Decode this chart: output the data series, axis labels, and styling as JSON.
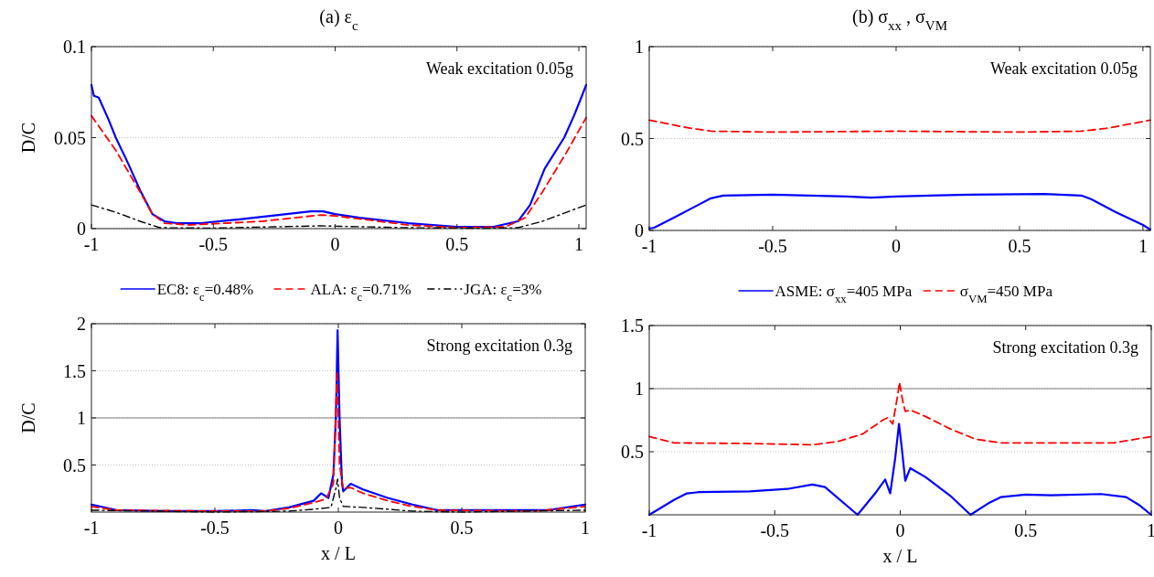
{
  "chart_data": [
    {
      "type": "line",
      "title": "(a) ε$_{c}$",
      "ylabel": "D/C",
      "xlim": [
        -1,
        1.03
      ],
      "ylim": [
        0,
        0.1
      ],
      "xticks": [
        -1,
        -0.5,
        0,
        0.5,
        1
      ],
      "yticks": [
        0,
        0.05,
        0.1
      ],
      "grid": "y",
      "legend": "bottom",
      "annotations": [
        "Weak excitation 0.05g"
      ],
      "series": [
        {
          "name": "EC8: ε$_{c}$=0.48%",
          "color": "#0000ff",
          "line_style": "solid",
          "x": [
            -1,
            -0.99,
            -0.97,
            -0.93,
            -0.9,
            -0.85,
            -0.8,
            -0.75,
            -0.7,
            -0.65,
            -0.55,
            -0.4,
            -0.2,
            -0.1,
            -0.05,
            0,
            0.1,
            0.3,
            0.5,
            0.65,
            0.75,
            0.8,
            0.86,
            0.94,
            0.98,
            1.01,
            1.03
          ],
          "values": [
            0.079,
            0.073,
            0.072,
            0.06,
            0.05,
            0.036,
            0.021,
            0.008,
            0.004,
            0.003,
            0.003,
            0.005,
            0.008,
            0.0095,
            0.0095,
            0.008,
            0.006,
            0.003,
            0.001,
            0.001,
            0.004,
            0.013,
            0.033,
            0.05,
            0.062,
            0.072,
            0.079
          ]
        },
        {
          "name": "ALA: ε$_{c}$=0.71%",
          "color": "#ff0000",
          "line_style": "dashed",
          "x": [
            -1,
            -0.9,
            -0.8,
            -0.75,
            -0.7,
            -0.6,
            -0.3,
            -0.06,
            0,
            0.3,
            0.5,
            0.7,
            0.78,
            0.85,
            0.95,
            1.03
          ],
          "values": [
            0.062,
            0.043,
            0.02,
            0.008,
            0.003,
            0.002,
            0.004,
            0.0075,
            0.007,
            0.002,
            0.0005,
            0.001,
            0.006,
            0.02,
            0.042,
            0.061
          ]
        },
        {
          "name": "JGA: ε$_{c}$=3%",
          "color": "#000000",
          "line_style": "dashdot",
          "x": [
            -1,
            -0.9,
            -0.8,
            -0.72,
            -0.5,
            -0.06,
            0.3,
            0.6,
            0.75,
            0.85,
            0.95,
            1.03
          ],
          "values": [
            0.013,
            0.009,
            0.004,
            0.0005,
            0.0003,
            0.0015,
            0.0005,
            0.0002,
            0.0005,
            0.004,
            0.009,
            0.013
          ]
        }
      ]
    },
    {
      "type": "line",
      "title": "(b) σ$_{xx}$ , σ$_{VM}$",
      "xlim": [
        -1,
        1.03
      ],
      "ylim": [
        0,
        1
      ],
      "xticks": [
        -1,
        -0.5,
        0,
        0.5,
        1
      ],
      "yticks": [
        0,
        0.5,
        1
      ],
      "grid": "y",
      "legend": "bottom",
      "annotations": [
        "Weak excitation 0.05g"
      ],
      "series": [
        {
          "name": "ASME: σ$_{xx}$=405 MPa",
          "color": "#0000ff",
          "line_style": "solid",
          "x": [
            -1,
            -0.98,
            -0.9,
            -0.8,
            -0.75,
            -0.7,
            -0.5,
            -0.2,
            -0.1,
            0,
            0.3,
            0.6,
            0.75,
            0.79,
            0.89,
            1.0,
            1.03
          ],
          "values": [
            0.01,
            0.015,
            0.07,
            0.14,
            0.175,
            0.19,
            0.195,
            0.185,
            0.178,
            0.185,
            0.195,
            0.198,
            0.19,
            0.17,
            0.1,
            0.03,
            0.005
          ]
        },
        {
          "name": "σ$_{VM}$=450 MPa",
          "color": "#ff0000",
          "line_style": "dashed",
          "x": [
            -1,
            -0.85,
            -0.75,
            -0.5,
            0,
            0.5,
            0.75,
            0.85,
            1.03
          ],
          "values": [
            0.6,
            0.56,
            0.54,
            0.535,
            0.54,
            0.535,
            0.54,
            0.555,
            0.6
          ]
        }
      ]
    },
    {
      "type": "line",
      "xlabel": "x / L",
      "ylabel": "D/C",
      "xlim": [
        -1,
        1
      ],
      "ylim": [
        0,
        2
      ],
      "xticks": [
        -1,
        -0.5,
        0,
        0.5,
        1
      ],
      "yticks": [
        0.5,
        1,
        1.5,
        2
      ],
      "grid": "y",
      "annotations": [
        "Strong excitation 0.3g"
      ],
      "ref_lines": [
        {
          "axis": "y",
          "value": 1,
          "color": "#808080",
          "line_style": "solid"
        }
      ],
      "series": [
        {
          "color": "#0000ff",
          "line_style": "solid",
          "x": [
            -1,
            -0.9,
            -0.7,
            -0.5,
            -0.35,
            -0.3,
            -0.2,
            -0.1,
            -0.07,
            -0.04,
            -0.02,
            -0.01,
            -0.003,
            0.005,
            0.015,
            0.02,
            0.05,
            0.1,
            0.2,
            0.3,
            0.4,
            0.6,
            0.85,
            1
          ],
          "values": [
            0.08,
            0.02,
            0.01,
            0.01,
            0.02,
            0.01,
            0.05,
            0.12,
            0.2,
            0.15,
            0.4,
            1.0,
            1.93,
            1.0,
            0.3,
            0.22,
            0.3,
            0.24,
            0.15,
            0.08,
            0.02,
            0.02,
            0.02,
            0.08
          ]
        },
        {
          "color": "#ff0000",
          "line_style": "dashed",
          "x": [
            -1,
            -0.9,
            -0.5,
            -0.3,
            -0.2,
            -0.1,
            -0.05,
            -0.02,
            -0.005,
            0.005,
            0.02,
            0.05,
            0.1,
            0.2,
            0.3,
            0.4,
            0.8,
            1
          ],
          "values": [
            0.06,
            0.02,
            0.01,
            0.01,
            0.04,
            0.1,
            0.14,
            0.3,
            1.5,
            0.5,
            0.25,
            0.26,
            0.2,
            0.12,
            0.06,
            0.02,
            0.01,
            0.06
          ]
        },
        {
          "color": "#000000",
          "line_style": "dashdot",
          "x": [
            -1,
            -0.5,
            -0.2,
            -0.1,
            -0.03,
            -0.01,
            -0.003,
            0.005,
            0.02,
            0.1,
            0.2,
            0.3,
            0.5,
            1
          ],
          "values": [
            0.02,
            0,
            0.01,
            0.03,
            0.05,
            0.25,
            0.35,
            0.15,
            0.06,
            0.05,
            0.03,
            0.01,
            0,
            0.02
          ]
        }
      ]
    },
    {
      "type": "line",
      "xlabel": "x / L",
      "xlim": [
        -1,
        1
      ],
      "ylim": [
        0,
        1.5
      ],
      "xticks": [
        -1,
        -0.5,
        0,
        0.5,
        1
      ],
      "yticks": [
        0.5,
        1,
        1.5
      ],
      "grid": "y",
      "annotations": [
        "Strong excitation 0.3g"
      ],
      "ref_lines": [
        {
          "axis": "y",
          "value": 1,
          "color": "#808080",
          "line_style": "solid"
        }
      ],
      "series": [
        {
          "color": "#0000ff",
          "line_style": "solid",
          "x": [
            -1,
            -0.9,
            -0.85,
            -0.8,
            -0.6,
            -0.45,
            -0.35,
            -0.3,
            -0.17,
            -0.1,
            -0.06,
            -0.04,
            -0.02,
            -0.005,
            0.005,
            0.02,
            0.04,
            0.1,
            0.2,
            0.28,
            0.35,
            0.4,
            0.5,
            0.6,
            0.8,
            0.9,
            0.95,
            1
          ],
          "values": [
            0,
            0.12,
            0.17,
            0.18,
            0.185,
            0.205,
            0.24,
            0.22,
            0,
            0.17,
            0.28,
            0.17,
            0.45,
            0.72,
            0.55,
            0.27,
            0.37,
            0.3,
            0.15,
            0,
            0.09,
            0.14,
            0.16,
            0.155,
            0.165,
            0.14,
            0.08,
            0
          ]
        },
        {
          "color": "#ff0000",
          "line_style": "dashed",
          "x": [
            -1,
            -0.9,
            -0.6,
            -0.35,
            -0.25,
            -0.15,
            -0.07,
            -0.05,
            -0.03,
            -0.01,
            -0.003,
            0.01,
            0.02,
            0.04,
            0.1,
            0.2,
            0.3,
            0.4,
            0.6,
            0.85,
            1
          ],
          "values": [
            0.62,
            0.57,
            0.565,
            0.555,
            0.58,
            0.64,
            0.75,
            0.77,
            0.72,
            0.95,
            1.05,
            0.9,
            0.82,
            0.83,
            0.78,
            0.68,
            0.6,
            0.57,
            0.57,
            0.57,
            0.62
          ]
        }
      ]
    }
  ]
}
